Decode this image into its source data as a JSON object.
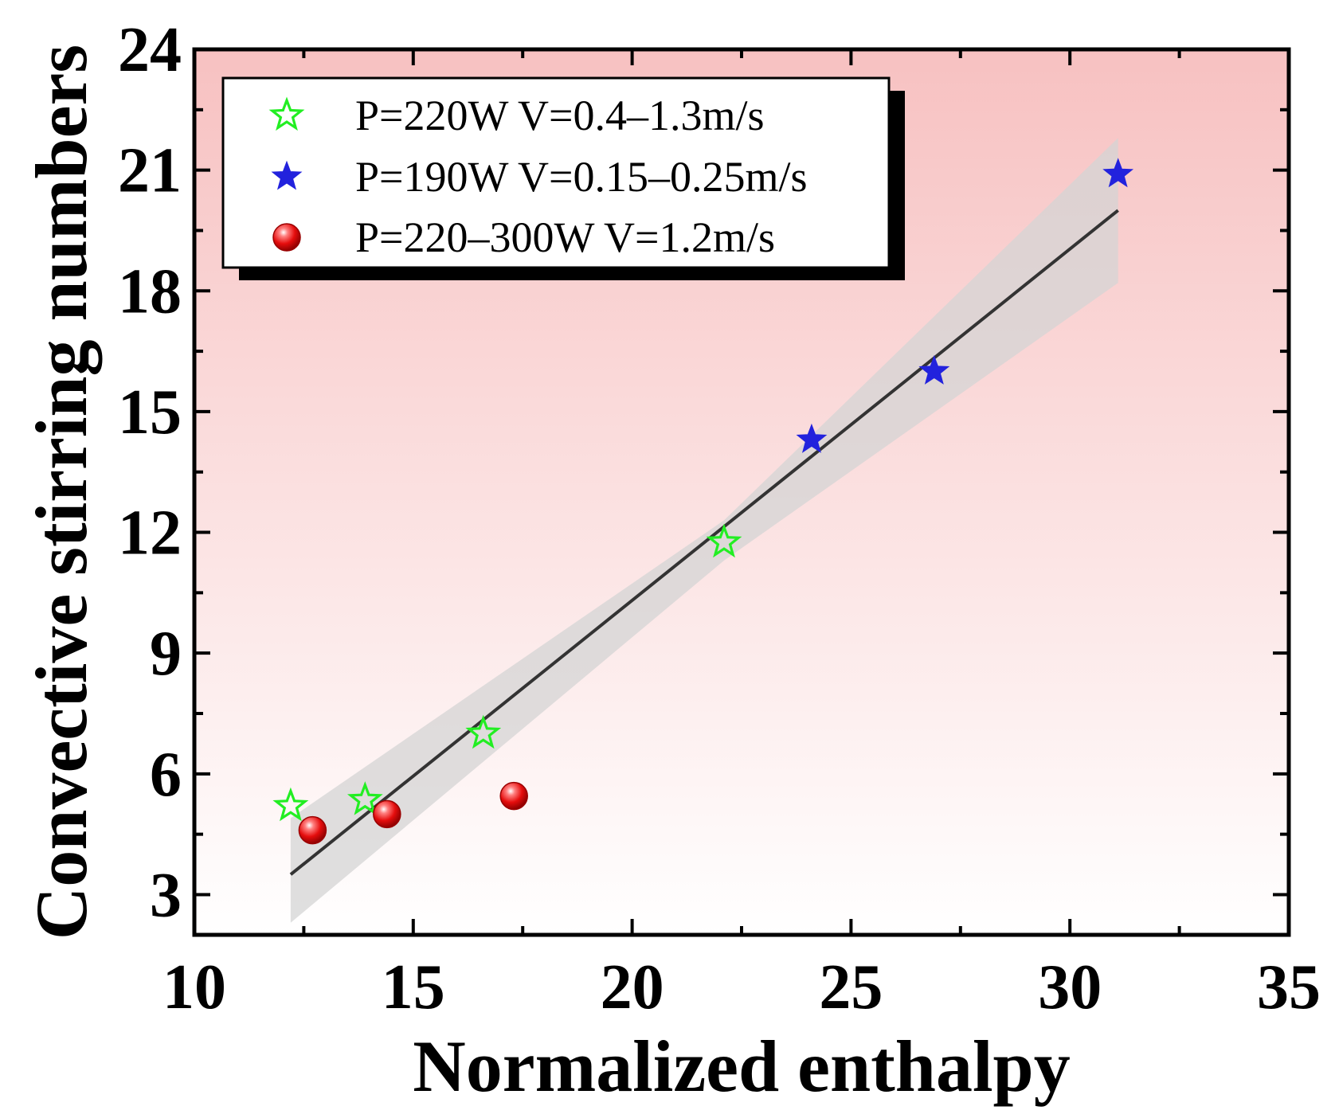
{
  "chart_data": {
    "type": "scatter",
    "title": "",
    "xlabel": "Normalized enthalpy",
    "ylabel": "Convective stirring numbers",
    "xlim": [
      10,
      35
    ],
    "ylim": [
      2,
      24
    ],
    "xticks": [
      10,
      15,
      20,
      25,
      30,
      35
    ],
    "yticks": [
      3,
      6,
      9,
      12,
      15,
      18,
      21,
      24
    ],
    "x_minor_step": 2.5,
    "y_minor_step": 1.5,
    "grid": false,
    "legend_position": "top-left",
    "series": [
      {
        "name": "P=220W V=0.4–1.3m/s",
        "marker": "open-star",
        "color": "#22ee22",
        "points": [
          [
            12.2,
            5.2
          ],
          [
            13.9,
            5.35
          ],
          [
            16.6,
            7.0
          ],
          [
            22.1,
            11.75
          ]
        ]
      },
      {
        "name": "P=190W V=0.15–0.25m/s",
        "marker": "filled-star",
        "color": "#2222dd",
        "points": [
          [
            24.1,
            14.3
          ],
          [
            26.9,
            16.0
          ],
          [
            31.1,
            20.9
          ]
        ]
      },
      {
        "name": "P=220–300W V=1.2m/s",
        "marker": "sphere",
        "color": "#ee1111",
        "points": [
          [
            12.7,
            4.6
          ],
          [
            14.4,
            5.0
          ],
          [
            17.3,
            5.45
          ]
        ]
      }
    ],
    "fit_line": {
      "color": "#333333",
      "x": [
        12.2,
        31.1
      ],
      "y": [
        3.5,
        20.0
      ],
      "confidence_band": {
        "color": "#d4d4d4",
        "x": [
          12.2,
          22.1,
          31.1
        ],
        "lower": [
          2.3,
          11.3,
          18.2
        ],
        "upper": [
          4.9,
          12.3,
          21.8
        ]
      }
    },
    "background_gradient": [
      "#f7c1c1",
      "#ffffff"
    ]
  }
}
